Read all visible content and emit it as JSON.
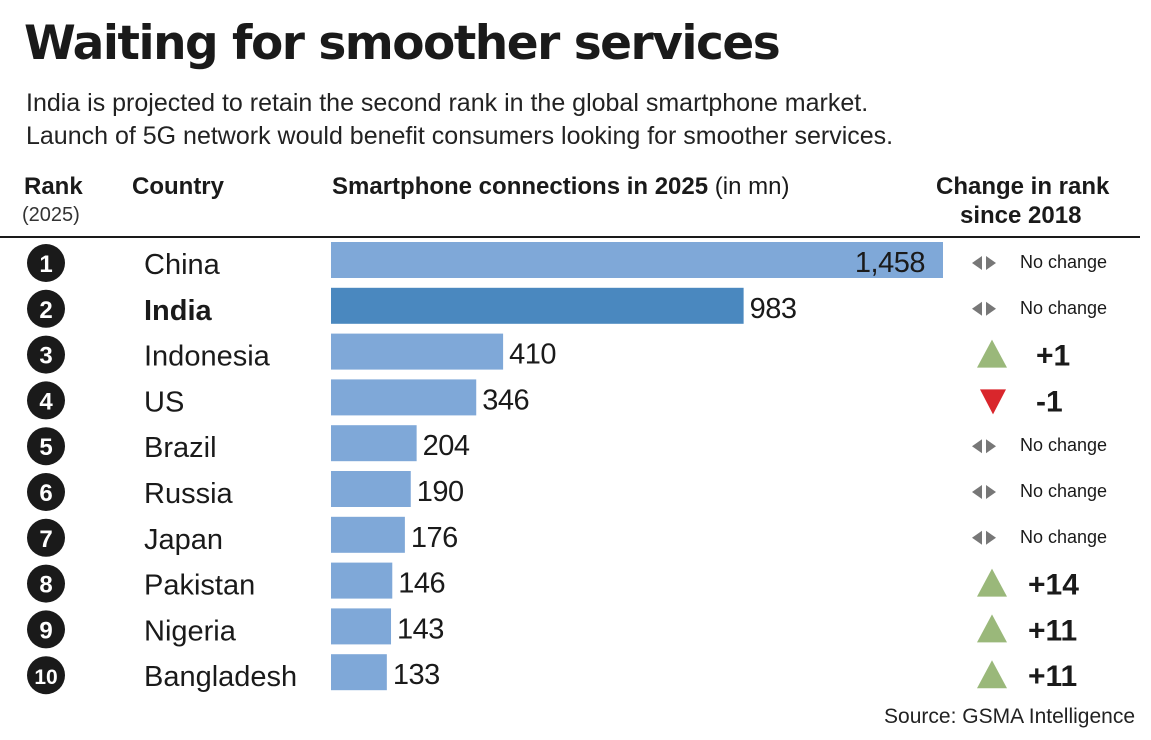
{
  "title": "Waiting for smoother services",
  "subtitle_lines": [
    "India is projected to retain the second rank in the global smartphone market.",
    "Launch of 5G network would benefit consumers looking for smoother services."
  ],
  "headers": {
    "rank": "Rank",
    "rank_year": "(2025)",
    "country": "Country",
    "connections": "Smartphone connections in 2025",
    "connections_unit": "(in mn)",
    "change_line1": "Change in rank",
    "change_line2": "since 2018"
  },
  "source": "Source: GSMA Intelligence",
  "colors": {
    "bar": "#7fa8d8",
    "bar_highlight": "#4a88bf",
    "up": "#9ab87a",
    "down": "#d9262c",
    "neutral": "#777777"
  },
  "chart_data": {
    "type": "bar",
    "orientation": "horizontal",
    "categories": [
      "China",
      "India",
      "Indonesia",
      "US",
      "Brazil",
      "Russia",
      "Japan",
      "Pakistan",
      "Nigeria",
      "Bangladesh"
    ],
    "ranks": [
      "1",
      "2",
      "3",
      "4",
      "5",
      "6",
      "7",
      "8",
      "9",
      "10"
    ],
    "values": [
      1458,
      983,
      410,
      346,
      204,
      190,
      176,
      146,
      143,
      133
    ],
    "value_labels": [
      "1,458",
      "983",
      "410",
      "346",
      "204",
      "190",
      "176",
      "146",
      "143",
      "133"
    ],
    "highlight": "India",
    "rank_change": [
      {
        "direction": "none",
        "label": "No change"
      },
      {
        "direction": "none",
        "label": "No change"
      },
      {
        "direction": "up",
        "label": "+1"
      },
      {
        "direction": "down",
        "label": "-1"
      },
      {
        "direction": "none",
        "label": "No change"
      },
      {
        "direction": "none",
        "label": "No change"
      },
      {
        "direction": "none",
        "label": "No change"
      },
      {
        "direction": "up",
        "label": "+14"
      },
      {
        "direction": "up",
        "label": "+11"
      },
      {
        "direction": "up",
        "label": "+11"
      }
    ],
    "xlim": [
      0,
      1458
    ],
    "grid": false,
    "legend": "none"
  }
}
